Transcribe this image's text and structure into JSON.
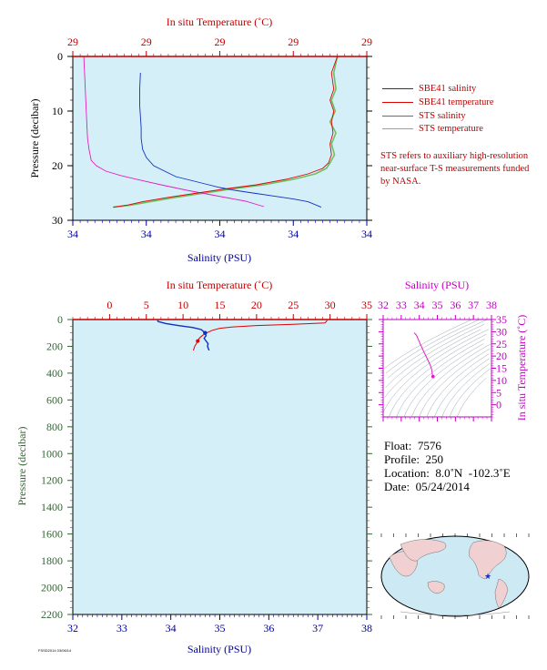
{
  "colors": {
    "plot_bg": "#d4eff8",
    "salinity": "#1030c0",
    "temperature": "#e00000",
    "sts_salinity": "#e020c0",
    "sts_temperature": "#70c060",
    "axis_blue": "#0000a0",
    "axis_red": "#c00000",
    "axis_green": "#336633",
    "axis_magenta": "#c000c0"
  },
  "legend": {
    "sbe_sal": "SBE41 salinity",
    "sbe_temp": "SBE41 temperature",
    "sts_sal": "STS salinity",
    "sts_temp": "STS temperature"
  },
  "note": "STS refers to auxiliary high-resolution near-surface T-S measurements funded by NASA.",
  "info": {
    "float": "Float:  7576",
    "profile": "Profile:  250",
    "location": "Location:  8.0˚N  -102.3˚E",
    "date": "Date:  05/24/2014"
  },
  "footer_tiny": "FSSD2014 03/06/14",
  "chart_data": [
    {
      "type": "line",
      "panel": "top",
      "title": "",
      "xlabel_top": "In situ Temperature (˚C)",
      "xlabel_bottom": "Salinity (PSU)",
      "ylabel": "Pressure (decibar)",
      "top_tick_labels": [
        "29",
        "29",
        "29",
        "29",
        "29"
      ],
      "bottom_tick_labels": [
        "34",
        "34",
        "34",
        "34",
        "34"
      ],
      "y_tick_labels": [
        "0",
        "10",
        "20",
        "30"
      ],
      "xlim": [
        0,
        4
      ],
      "ylim": [
        0,
        30
      ],
      "grid": false,
      "legend_position": "right",
      "series": [
        {
          "name": "SBE41 salinity",
          "key": "salinity",
          "x": [
            0.92,
            0.91,
            0.91,
            0.92,
            0.93,
            0.93,
            0.95,
            1.0,
            1.1,
            1.25,
            1.4,
            1.55,
            1.7,
            1.85,
            2.0,
            2.2,
            2.45,
            2.75,
            3.0,
            3.2,
            3.38
          ],
          "y": [
            3,
            6,
            9,
            11,
            13,
            15,
            17,
            18.5,
            20,
            21,
            22,
            22.5,
            23,
            23.5,
            24,
            24.5,
            25,
            25.6,
            26.1,
            26.6,
            27.6
          ]
        },
        {
          "name": "SBE41 temperature",
          "key": "temperature",
          "x": [
            3.6,
            3.52,
            3.55,
            3.5,
            3.55,
            3.52,
            3.54,
            3.5,
            3.52,
            3.48,
            3.4,
            3.2,
            2.9,
            2.5,
            2.1,
            1.7,
            1.3,
            0.95,
            0.75,
            0.55
          ],
          "y": [
            0,
            3,
            6,
            8,
            10,
            12,
            14,
            16,
            18,
            19.5,
            20.5,
            21.5,
            22.5,
            23.5,
            24.2,
            25,
            25.8,
            26.6,
            27.2,
            27.6
          ]
        },
        {
          "name": "STS salinity",
          "key": "sts_salinity",
          "x": [
            0.15,
            0.16,
            0.17,
            0.18,
            0.19,
            0.2,
            0.22,
            0.25,
            0.32,
            0.45,
            0.65,
            0.9,
            1.2,
            1.55,
            1.95,
            2.35,
            2.6
          ],
          "y": [
            0,
            3,
            6,
            9,
            12,
            15,
            17,
            19,
            20,
            21,
            21.8,
            22.6,
            23.5,
            24.5,
            25.5,
            26.5,
            27.5
          ]
        },
        {
          "name": "STS temperature",
          "key": "sts_temperature",
          "x": [
            3.6,
            3.55,
            3.58,
            3.52,
            3.57,
            3.5,
            3.58,
            3.52,
            3.56,
            3.5,
            3.45,
            3.3,
            3.0,
            2.6,
            2.2,
            1.8,
            1.4,
            1.05,
            0.8,
            0.55
          ],
          "y": [
            0,
            3,
            6,
            8,
            10,
            12,
            14,
            16,
            18,
            19.5,
            20.5,
            21.5,
            22.5,
            23.5,
            24.2,
            25,
            25.8,
            26.6,
            27.2,
            27.6
          ]
        }
      ]
    },
    {
      "type": "line",
      "panel": "main",
      "title": "",
      "xlabel_top": "In situ Temperature (˚C)",
      "xlabel_bottom": "Salinity (PSU)",
      "ylabel": "Pressure (decibar)",
      "temp_range": [
        -5,
        35
      ],
      "temp_ticks": [
        0,
        5,
        10,
        15,
        20,
        25,
        30,
        35
      ],
      "sal_range": [
        32,
        38
      ],
      "sal_ticks": [
        32,
        33,
        34,
        35,
        36,
        37,
        38
      ],
      "ylim": [
        0,
        2200
      ],
      "y_ticks": [
        0,
        200,
        400,
        600,
        800,
        1000,
        1200,
        1400,
        1600,
        1800,
        2000,
        2200
      ],
      "grid": false,
      "series": [
        {
          "name": "Salinity",
          "key": "salinity",
          "sal": [
            33.73,
            33.74,
            33.9,
            34.15,
            34.45,
            34.62,
            34.7,
            34.72,
            34.68,
            34.72,
            34.76,
            34.75,
            34.78
          ],
          "p": [
            5,
            15,
            30,
            45,
            60,
            75,
            100,
            120,
            140,
            160,
            180,
            200,
            230
          ]
        },
        {
          "name": "Temperature",
          "key": "temperature",
          "temp": [
            29.6,
            29.5,
            29.3,
            25.0,
            20.0,
            16.8,
            15.0,
            14.0,
            13.2,
            12.6,
            12.2,
            12.0,
            11.8,
            11.6,
            11.4
          ],
          "p": [
            5,
            15,
            25,
            35,
            45,
            55,
            65,
            80,
            100,
            120,
            140,
            160,
            180,
            200,
            230
          ]
        }
      ]
    },
    {
      "type": "scatter",
      "panel": "ts-inset",
      "title": "",
      "xlabel": "Salinity (PSU)",
      "ylabel": "In situ Temperature (˚C)",
      "xlim": [
        32,
        38
      ],
      "ylim": [
        -5,
        35
      ],
      "x_ticks": [
        32,
        33,
        34,
        35,
        36,
        37,
        38
      ],
      "y_ticks": [
        0,
        5,
        10,
        15,
        20,
        25,
        30,
        35
      ],
      "series": [
        {
          "name": "T-S profile",
          "key": "sts_salinity",
          "sal": [
            33.73,
            33.74,
            33.85,
            34.05,
            34.3,
            34.5,
            34.62,
            34.68,
            34.7,
            34.72,
            34.74,
            34.76
          ],
          "temp": [
            29.6,
            29.4,
            28.5,
            25.0,
            21.0,
            18.0,
            16.0,
            14.6,
            13.6,
            12.8,
            12.2,
            11.6
          ]
        }
      ]
    }
  ]
}
